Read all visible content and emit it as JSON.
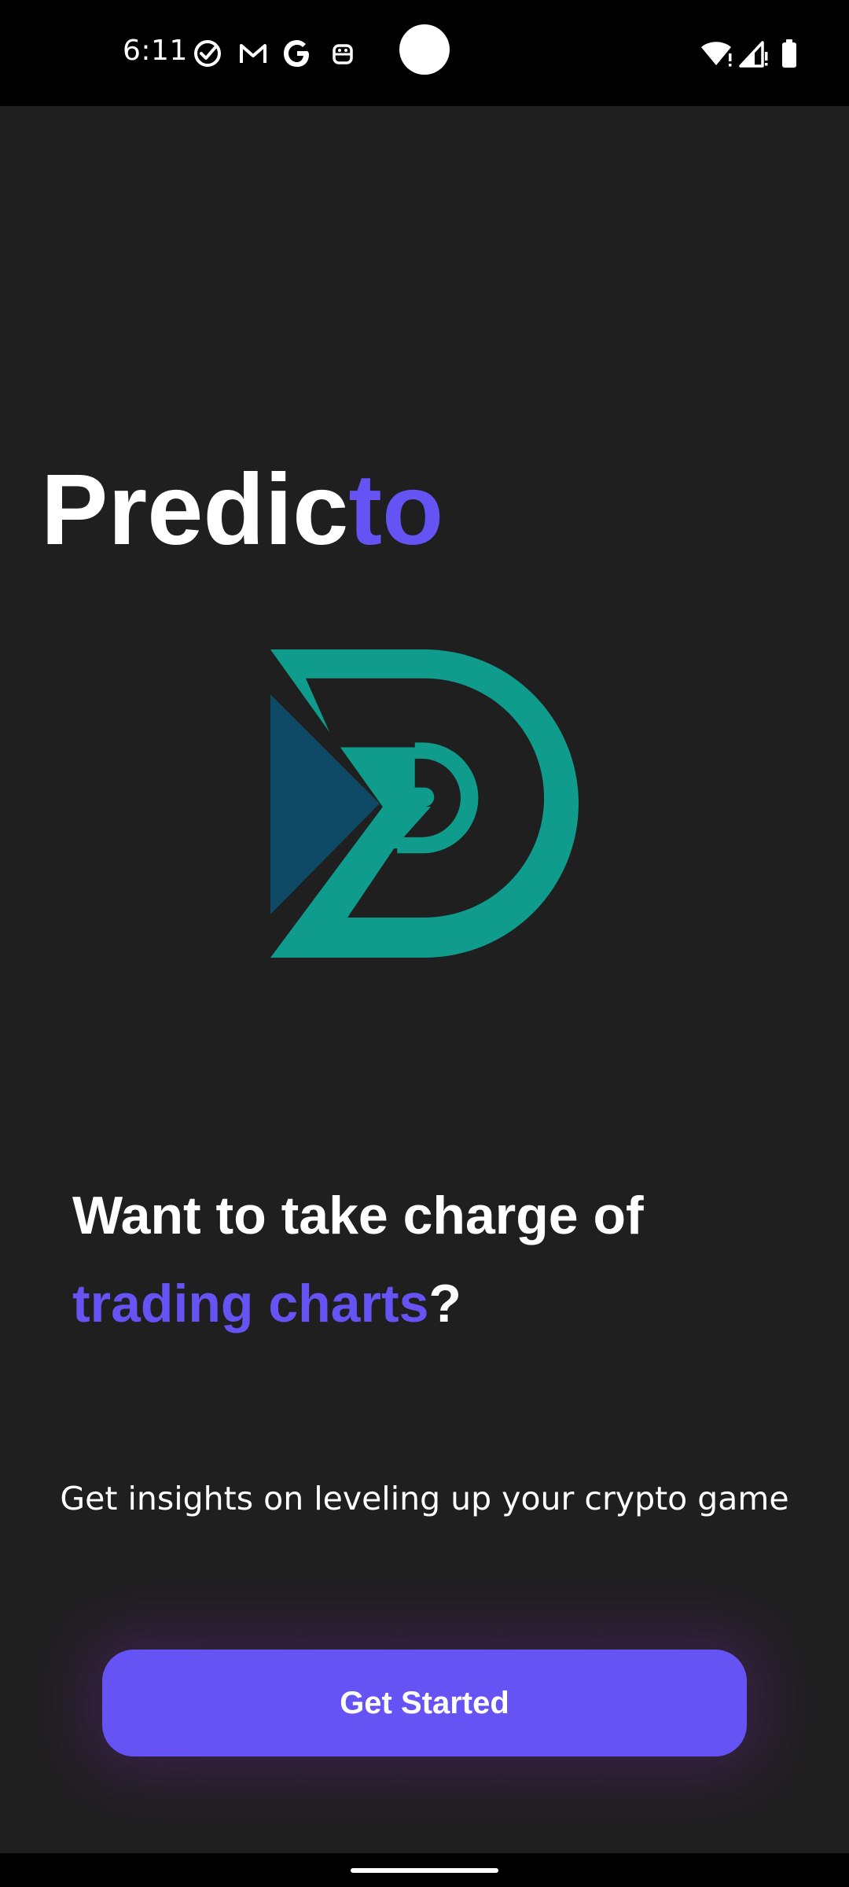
{
  "status_bar": {
    "time": "6:11",
    "left_icons": [
      "check-circle-icon",
      "gmail-icon",
      "google-icon",
      "robot-icon"
    ],
    "right_icons": [
      "wifi-alert-icon",
      "signal-alert-icon",
      "battery-icon"
    ]
  },
  "brand": {
    "name_main": "Predic",
    "name_accent": "to",
    "logo_icon": "predicto-logo-icon"
  },
  "headline": {
    "line1": "Want to take charge of",
    "accent": "trading charts",
    "suffix": "?"
  },
  "subtitle": "Get insights on leveling up your crypto game",
  "cta": {
    "label": "Get Started"
  },
  "colors": {
    "background": "#1f1f1f",
    "accent": "#6653f4",
    "logo_teal": "#0f9c8c",
    "logo_navy": "#0e4a66",
    "text": "#ffffff"
  }
}
